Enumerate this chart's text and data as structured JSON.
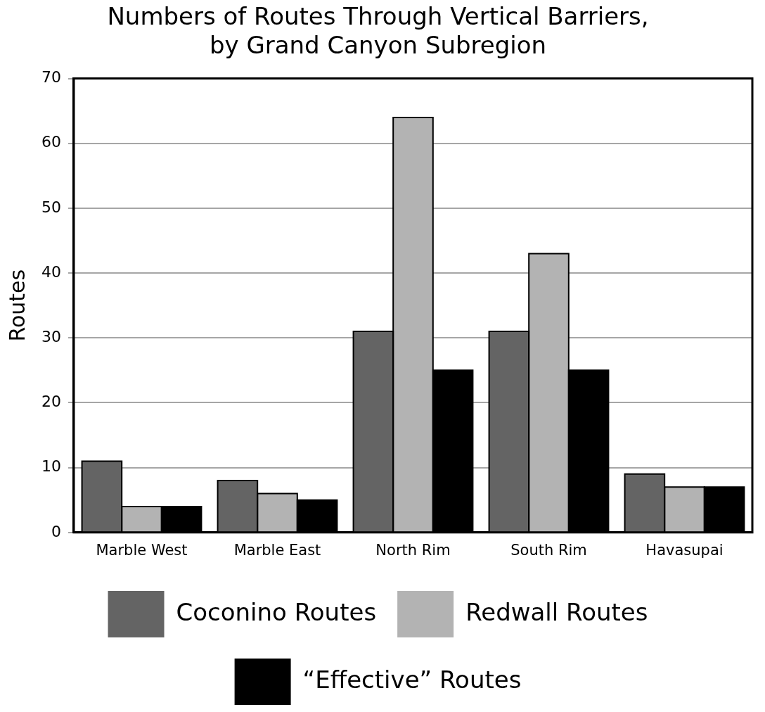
{
  "chart_data": {
    "type": "bar",
    "title": "Numbers of Routes Through Vertical Barriers, by Grand Canyon Subregion",
    "ylabel": "Routes",
    "categories": [
      "Marble West",
      "Marble East",
      "North Rim",
      "South Rim",
      "Havasupai"
    ],
    "series": [
      {
        "name": "Coconino Routes",
        "color": "#646464",
        "values": [
          11,
          8,
          31,
          31,
          9
        ]
      },
      {
        "name": "Redwall Routes",
        "color": "#b3b3b3",
        "values": [
          4,
          6,
          64,
          43,
          7
        ]
      },
      {
        "name": "“Effective” Routes",
        "color": "#000000",
        "values": [
          4,
          5,
          25,
          25,
          7
        ]
      }
    ],
    "ylim": [
      0,
      70
    ],
    "yticks": [
      0,
      10,
      20,
      30,
      40,
      50,
      60,
      70
    ],
    "grid": "y",
    "legend": "bottom"
  }
}
